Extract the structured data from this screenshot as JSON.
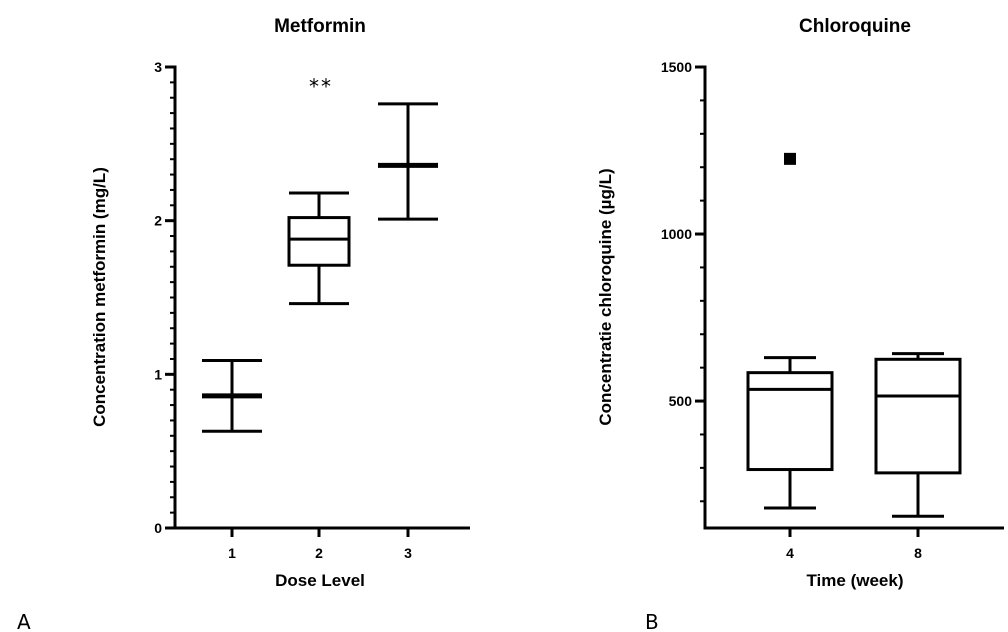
{
  "panels": {
    "a": {
      "letter": "A"
    },
    "b": {
      "letter": "B"
    }
  },
  "chart_data": [
    {
      "type": "box",
      "title": "Metformin",
      "xlabel": "Dose Level",
      "ylabel": "Concentration metformin (mg/L)",
      "categories": [
        "1",
        "2",
        "3"
      ],
      "ylim": [
        0,
        3
      ],
      "yticks": [
        0,
        1,
        2,
        3
      ],
      "yminor_step": 0.1,
      "boxes": [
        {
          "category": "1",
          "min": 0.63,
          "q1": 0.86,
          "median": 0.86,
          "q3": 0.86,
          "max": 1.09
        },
        {
          "category": "2",
          "min": 1.46,
          "q1": 1.71,
          "median": 1.88,
          "q3": 2.02,
          "max": 2.18
        },
        {
          "category": "3",
          "min": 2.01,
          "q1": 2.36,
          "median": 2.36,
          "q3": 2.36,
          "max": 2.76
        }
      ],
      "outliers": [],
      "annotations": [
        {
          "category": "2",
          "y": 2.9,
          "text": "**"
        }
      ],
      "grid": false
    },
    {
      "type": "box",
      "title": "Chloroquine",
      "xlabel": "Time (week)",
      "ylabel": "Concentratie chloroquine (µg/L)",
      "categories": [
        "4",
        "8"
      ],
      "ylim": [
        120,
        1500
      ],
      "yticks": [
        500,
        1000,
        1500
      ],
      "yminor_step": 100,
      "boxes": [
        {
          "category": "4",
          "min": 180,
          "q1": 295,
          "median": 535,
          "q3": 585,
          "max": 630
        },
        {
          "category": "8",
          "min": 155,
          "q1": 285,
          "median": 515,
          "q3": 625,
          "max": 642
        }
      ],
      "outliers": [
        {
          "category": "4",
          "y": 1225
        }
      ],
      "annotations": [],
      "grid": false
    }
  ]
}
